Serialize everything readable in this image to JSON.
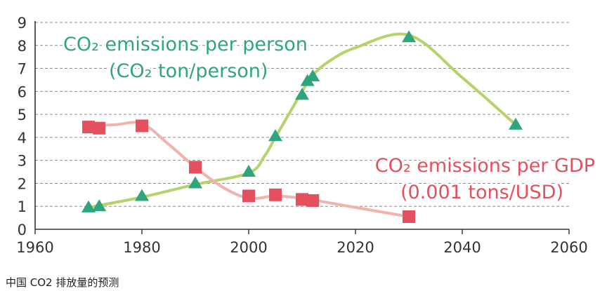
{
  "caption": "中国 CO2 排放量的预测",
  "chart_data": {
    "type": "line",
    "x_range": [
      1960,
      2060
    ],
    "y_range": [
      0,
      9
    ],
    "x_ticks": [
      1960,
      1980,
      2000,
      2020,
      2040,
      2060
    ],
    "y_ticks": [
      0,
      1,
      2,
      3,
      4,
      5,
      6,
      7,
      8,
      9
    ],
    "grid": "horizontal dashed",
    "series": [
      {
        "name": "CO₂ emissions per person",
        "label_lines": [
          "CO₂ emissions per person",
          "(CO₂ ton/person)"
        ],
        "marker": "triangle",
        "line_color": "#b5d36a",
        "marker_color": "#2fa57e",
        "label_color": "#2fa57e",
        "curve_x": [
          1970,
          1980,
          1990,
          2000,
          2003,
          2005,
          2008,
          2010,
          2012,
          2015,
          2020,
          2030,
          2040,
          2050
        ],
        "curve_y": [
          0.95,
          1.4,
          1.95,
          2.45,
          3.2,
          4.0,
          5.2,
          6.0,
          6.7,
          7.3,
          7.9,
          8.45,
          6.6,
          4.55
        ],
        "points": [
          {
            "x": 1970,
            "y": 0.95
          },
          {
            "x": 1972,
            "y": 1.0
          },
          {
            "x": 1980,
            "y": 1.45
          },
          {
            "x": 1990,
            "y": 2.0
          },
          {
            "x": 2000,
            "y": 2.5
          },
          {
            "x": 2005,
            "y": 4.05
          },
          {
            "x": 2010,
            "y": 5.85
          },
          {
            "x": 2011,
            "y": 6.45
          },
          {
            "x": 2012,
            "y": 6.65
          },
          {
            "x": 2030,
            "y": 8.35
          },
          {
            "x": 2050,
            "y": 4.55
          }
        ]
      },
      {
        "name": "CO₂ emissions per GDP",
        "label_lines": [
          "CO₂ emissions per GDP",
          "(0.001 tons/USD)"
        ],
        "marker": "square",
        "line_color": "#f0b3ae",
        "marker_color": "#e5505f",
        "label_color": "#e5505f",
        "curve_x": [
          1970,
          1975,
          1980,
          1985,
          1990,
          1995,
          2000,
          2005,
          2010,
          2012,
          2020,
          2030
        ],
        "curve_y": [
          4.5,
          4.55,
          4.6,
          3.7,
          2.7,
          1.85,
          1.35,
          1.45,
          1.35,
          1.28,
          0.95,
          0.55
        ],
        "points": [
          {
            "x": 1970,
            "y": 4.45
          },
          {
            "x": 1972,
            "y": 4.4
          },
          {
            "x": 1980,
            "y": 4.5
          },
          {
            "x": 1990,
            "y": 2.7
          },
          {
            "x": 2000,
            "y": 1.45
          },
          {
            "x": 2005,
            "y": 1.5
          },
          {
            "x": 2010,
            "y": 1.3
          },
          {
            "x": 2012,
            "y": 1.25
          },
          {
            "x": 2030,
            "y": 0.55
          }
        ]
      }
    ]
  }
}
